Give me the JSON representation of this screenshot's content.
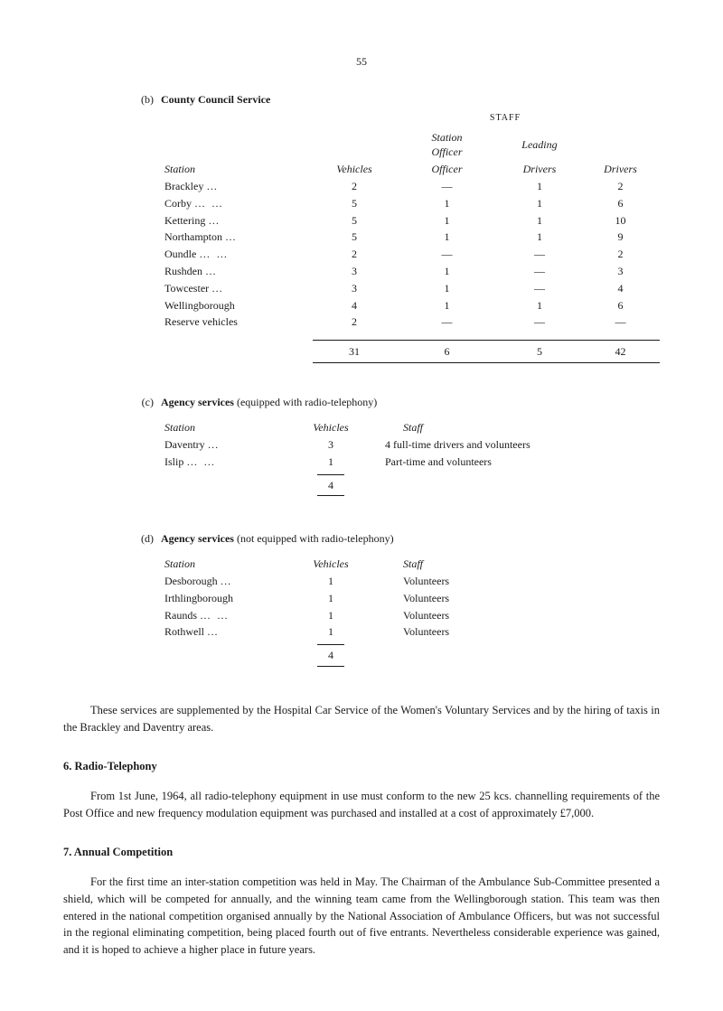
{
  "page_number": "55",
  "section_b": {
    "label": "(b)",
    "title": "County Council Service",
    "staff_label": "STAFF",
    "headers": {
      "station": "Station",
      "vehicles": "Vehicles",
      "station_officer": "Station Officer",
      "leading_drivers": "Leading Drivers",
      "drivers": "Drivers"
    },
    "rows": [
      {
        "station": "Brackley",
        "dots": "…",
        "vehicles": "2",
        "officer": "—",
        "leading": "1",
        "drivers": "2"
      },
      {
        "station": "Corby",
        "dots": "…   …",
        "vehicles": "5",
        "officer": "1",
        "leading": "1",
        "drivers": "6"
      },
      {
        "station": "Kettering",
        "dots": "…",
        "vehicles": "5",
        "officer": "1",
        "leading": "1",
        "drivers": "10"
      },
      {
        "station": "Northampton",
        "dots": "…",
        "vehicles": "5",
        "officer": "1",
        "leading": "1",
        "drivers": "9"
      },
      {
        "station": "Oundle",
        "dots": "…   …",
        "vehicles": "2",
        "officer": "—",
        "leading": "—",
        "drivers": "2"
      },
      {
        "station": "Rushden",
        "dots": "…",
        "vehicles": "3",
        "officer": "1",
        "leading": "—",
        "drivers": "3"
      },
      {
        "station": "Towcester",
        "dots": "…",
        "vehicles": "3",
        "officer": "1",
        "leading": "—",
        "drivers": "4"
      },
      {
        "station": "Wellingborough",
        "dots": "",
        "vehicles": "4",
        "officer": "1",
        "leading": "1",
        "drivers": "6"
      },
      {
        "station": "Reserve vehicles",
        "dots": "",
        "vehicles": "2",
        "officer": "—",
        "leading": "—",
        "drivers": "—"
      }
    ],
    "totals": {
      "vehicles": "31",
      "officer": "6",
      "leading": "5",
      "drivers": "42"
    }
  },
  "section_c": {
    "label": "(c)",
    "title": "Agency services",
    "title_suffix": " (equipped with radio-telephony)",
    "headers": {
      "station": "Station",
      "vehicles": "Vehicles",
      "staff": "Staff"
    },
    "rows": [
      {
        "station": "Daventry",
        "dots": "…",
        "vehicles": "3",
        "staff": "4 full-time drivers and volunteers"
      },
      {
        "station": "Islip",
        "dots": "…   …",
        "vehicles": "1",
        "staff": "Part-time and volunteers"
      }
    ],
    "total": "4"
  },
  "section_d": {
    "label": "(d)",
    "title": "Agency services",
    "title_suffix": " (not equipped with radio-telephony)",
    "headers": {
      "station": "Station",
      "vehicles": "Vehicles",
      "staff": "Staff"
    },
    "rows": [
      {
        "station": "Desborough",
        "dots": "…",
        "vehicles": "1",
        "staff": "Volunteers"
      },
      {
        "station": "Irthlingborough",
        "dots": "",
        "vehicles": "1",
        "staff": "Volunteers"
      },
      {
        "station": "Raunds",
        "dots": "…   …",
        "vehicles": "1",
        "staff": "Volunteers"
      },
      {
        "station": "Rothwell",
        "dots": "…",
        "vehicles": "1",
        "staff": "Volunteers"
      }
    ],
    "total": "4"
  },
  "paragraph1": "These services are supplemented by the Hospital Car Service of the Women's Voluntary Services and by the hiring of taxis in the Brackley and Daventry areas.",
  "heading6": "6.  Radio-Telephony",
  "paragraph2": "From 1st June, 1964, all radio-telephony equipment in use must conform to the new 25 kcs. channelling requirements of the Post Office and new frequency modulation equipment was purchased and installed at a cost of approximately £7,000.",
  "heading7": "7.  Annual Competition",
  "paragraph3": "For the first time an inter-station competition was held in May. The Chairman of the Ambulance Sub-Committee presented a shield, which will be competed for annually, and the winning team came from the Wellingborough station. This team was then entered in the national competition organised annually by the National Association of Ambulance Officers, but was not successful in the regional eliminating competition, being placed fourth out of five entrants. Nevertheless considerable experience was gained, and it is hoped to achieve a higher place in future years."
}
